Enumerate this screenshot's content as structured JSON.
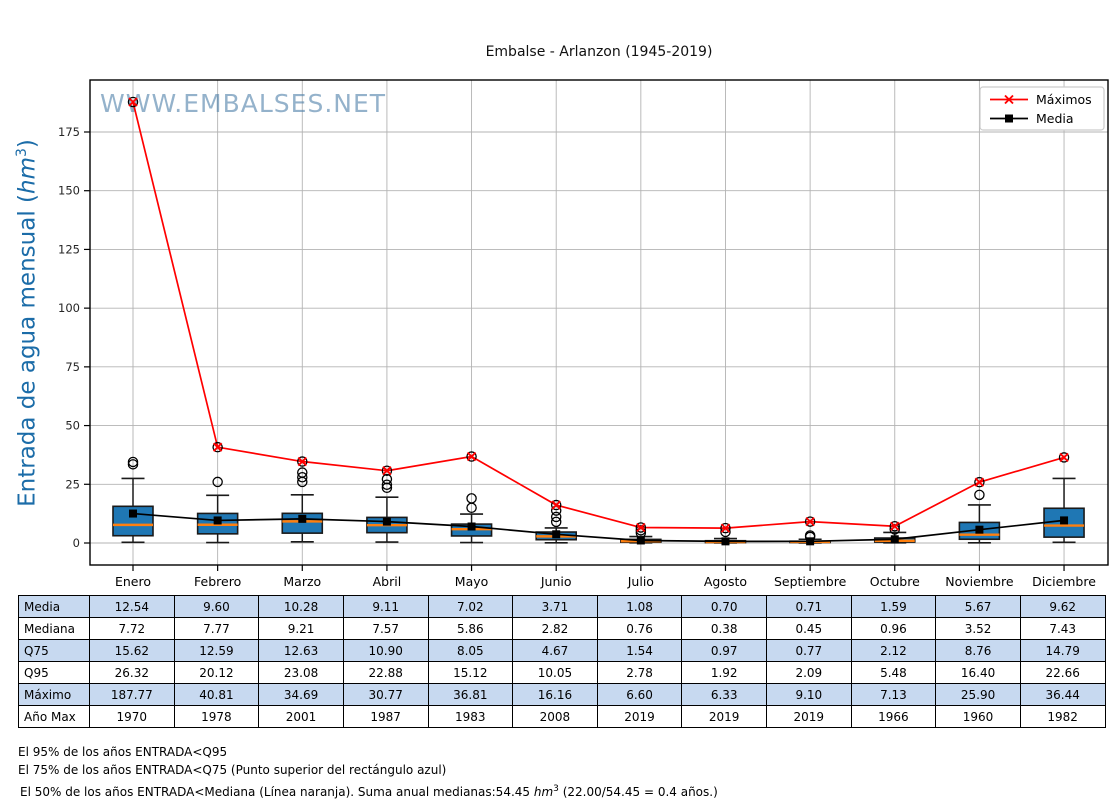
{
  "title": "Embalse - Arlanzon (1945-2019)",
  "watermark": "WWW.EMBALSES.NET",
  "ylabel": {
    "pre": "Entrada de agua mensual (",
    "unit": "hm",
    "sup": "3",
    "post": ")"
  },
  "legend": [
    {
      "label": "Máximos",
      "marker": "x",
      "color": "#ff0000"
    },
    {
      "label": "Media",
      "marker": "square",
      "color": "#000000"
    }
  ],
  "colors": {
    "box_fill": "#1f77b4",
    "box_edge": "#1a1a1a",
    "median_line": "#ff7f0e",
    "max_line": "#ff0000",
    "mean_line": "#000000",
    "grid": "#b3b3b3",
    "axis": "#000000",
    "tick_label": "#262626",
    "table_shaded": "#c7d9f0",
    "watermark": "rgba(77,127,168,0.6)",
    "ylabel": "#1b6ca8"
  },
  "chart_data": {
    "type": "boxplot+lines",
    "title": "Embalse - Arlanzon (1945-2019)",
    "months": [
      "Enero",
      "Febrero",
      "Marzo",
      "Abril",
      "Mayo",
      "Junio",
      "Julio",
      "Agosto",
      "Septiembre",
      "Octubre",
      "Noviembre",
      "Diciembre"
    ],
    "yticks": [
      0,
      25,
      50,
      75,
      100,
      125,
      150,
      175
    ],
    "ylim": [
      -9.4,
      197.2
    ],
    "grid": true,
    "legend_position": "upper right",
    "series": [
      {
        "name": "Máximos",
        "color": "#ff0000",
        "marker": "x",
        "values": [
          187.77,
          40.81,
          34.69,
          30.77,
          36.81,
          16.16,
          6.6,
          6.33,
          9.1,
          7.13,
          25.9,
          36.44
        ]
      },
      {
        "name": "Media",
        "color": "#000000",
        "marker": "square",
        "values": [
          12.54,
          9.6,
          10.28,
          9.11,
          7.02,
          3.71,
          1.08,
          0.7,
          0.71,
          1.59,
          5.67,
          9.62
        ]
      }
    ],
    "medians": [
      7.72,
      7.77,
      9.21,
      7.57,
      5.86,
      2.82,
      0.76,
      0.38,
      0.45,
      0.96,
      3.52,
      7.43
    ],
    "q75": [
      15.62,
      12.59,
      12.63,
      10.9,
      8.05,
      4.67,
      1.54,
      0.97,
      0.77,
      2.12,
      8.76,
      14.79
    ],
    "q95": [
      26.32,
      20.12,
      23.08,
      22.88,
      15.12,
      10.05,
      2.78,
      1.92,
      2.09,
      5.48,
      16.4,
      22.66
    ],
    "boxes": [
      {
        "whislo": 0.3,
        "q1": 3.1,
        "med": 7.72,
        "q3": 15.62,
        "whishi": 27.5,
        "outliers": [
          33.5,
          34.5
        ]
      },
      {
        "whislo": 0.2,
        "q1": 3.9,
        "med": 7.77,
        "q3": 12.59,
        "whishi": 20.3,
        "outliers": [
          26.0
        ]
      },
      {
        "whislo": 0.5,
        "q1": 4.2,
        "med": 9.21,
        "q3": 12.63,
        "whishi": 20.5,
        "outliers": [
          26.0,
          28.0,
          30.0
        ]
      },
      {
        "whislo": 0.4,
        "q1": 4.4,
        "med": 7.57,
        "q3": 10.9,
        "whishi": 19.5,
        "outliers": [
          23.5,
          24.8,
          27.2
        ]
      },
      {
        "whislo": 0.2,
        "q1": 3.0,
        "med": 5.86,
        "q3": 8.05,
        "whishi": 12.3,
        "outliers": [
          15.0,
          19.0
        ]
      },
      {
        "whislo": 0.1,
        "q1": 1.4,
        "med": 2.82,
        "q3": 4.67,
        "whishi": 6.4,
        "outliers": [
          9.0,
          11.1,
          13.8
        ]
      },
      {
        "whislo": 0.05,
        "q1": 0.35,
        "med": 0.76,
        "q3": 1.54,
        "whishi": 2.75,
        "outliers": [
          4.3,
          5.4
        ]
      },
      {
        "whislo": 0.02,
        "q1": 0.15,
        "med": 0.38,
        "q3": 0.97,
        "whishi": 1.9,
        "outliers": [
          4.7
        ]
      },
      {
        "whislo": 0.02,
        "q1": 0.2,
        "med": 0.45,
        "q3": 0.77,
        "whishi": 1.6,
        "outliers": [
          2.6,
          3.2
        ]
      },
      {
        "whislo": 0.05,
        "q1": 0.4,
        "med": 0.96,
        "q3": 2.12,
        "whishi": 4.5,
        "outliers": [
          5.8
        ]
      },
      {
        "whislo": 0.1,
        "q1": 1.6,
        "med": 3.52,
        "q3": 8.76,
        "whishi": 16.2,
        "outliers": [
          20.5
        ]
      },
      {
        "whislo": 0.3,
        "q1": 2.5,
        "med": 7.43,
        "q3": 14.79,
        "whishi": 27.5,
        "outliers": []
      }
    ]
  },
  "table": {
    "rows": [
      {
        "label": "Media",
        "shaded": true,
        "values": [
          "12.54",
          "9.60",
          "10.28",
          "9.11",
          "7.02",
          "3.71",
          "1.08",
          "0.70",
          "0.71",
          "1.59",
          "5.67",
          "9.62"
        ]
      },
      {
        "label": "Mediana",
        "shaded": false,
        "values": [
          "7.72",
          "7.77",
          "9.21",
          "7.57",
          "5.86",
          "2.82",
          "0.76",
          "0.38",
          "0.45",
          "0.96",
          "3.52",
          "7.43"
        ]
      },
      {
        "label": "Q75",
        "shaded": true,
        "values": [
          "15.62",
          "12.59",
          "12.63",
          "10.90",
          "8.05",
          "4.67",
          "1.54",
          "0.97",
          "0.77",
          "2.12",
          "8.76",
          "14.79"
        ]
      },
      {
        "label": "Q95",
        "shaded": false,
        "values": [
          "26.32",
          "20.12",
          "23.08",
          "22.88",
          "15.12",
          "10.05",
          "2.78",
          "1.92",
          "2.09",
          "5.48",
          "16.40",
          "22.66"
        ]
      },
      {
        "label": "Máximo",
        "shaded": true,
        "values": [
          "187.77",
          "40.81",
          "34.69",
          "30.77",
          "36.81",
          "16.16",
          "6.60",
          "6.33",
          "9.10",
          "7.13",
          "25.90",
          "36.44"
        ]
      },
      {
        "label": "Año Max",
        "shaded": false,
        "values": [
          "1970",
          "1978",
          "2001",
          "1987",
          "1983",
          "2008",
          "2019",
          "2019",
          "2019",
          "1966",
          "1960",
          "1982"
        ]
      }
    ]
  },
  "footnotes": [
    {
      "text": "El 95% de los años ENTRADA<Q95"
    },
    {
      "text": "El 75% de los años ENTRADA<Q75 (Punto superior del rectángulo azul)"
    },
    {
      "pre": "El 50% de los años ENTRADA<Mediana (Línea naranja). Suma anual medianas:54.45 ",
      "unit": "hm",
      "sup": "3",
      "post": " (22.00/54.45 = 0.4 años.)"
    }
  ]
}
